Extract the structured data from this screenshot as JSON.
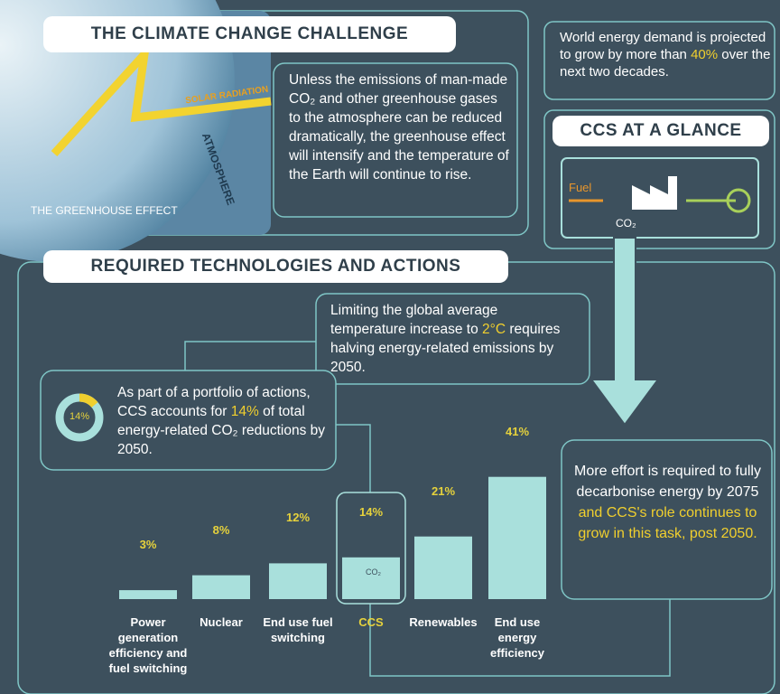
{
  "climate": {
    "title": "THE CLIMATE CHANGE CHALLENGE",
    "solar": "SOLAR RADIATION",
    "atmosphere": "ATMOSPHERE",
    "caption": "THE GREENHOUSE EFFECT",
    "text": "Unless the emissions of man-made CO₂ and other greenhouse gases to the atmosphere can be reduced dramatically, the greenhouse effect will intensify and the temperature of the Earth will continue to rise."
  },
  "demand": {
    "parts": [
      "World energy demand is projected to grow by more than ",
      "40%",
      " over the next two decades."
    ]
  },
  "glance": {
    "title": "CCS AT A GLANCE",
    "fuel": "Fuel",
    "co2": "CO₂"
  },
  "required": {
    "title": "REQUIRED TECHNOLOGIES AND ACTIONS",
    "limit_parts": [
      "Limiting the global average temperature increase to ",
      "2°C",
      " requires halving energy-related emissions by 2050."
    ],
    "portfolio_parts": [
      "As part of a portfolio of actions, CCS accounts for ",
      "14%",
      " of total energy-related CO₂ reductions by 2050."
    ],
    "ccs_share": {
      "value": 14,
      "label": "14%"
    },
    "effort_parts": [
      "More effort is required to fully decarbonise energy by 2075 ",
      "and CCS's role continues to grow in this task, post 2050."
    ],
    "ccs_co2": "CO₂"
  },
  "chart_data": {
    "type": "bar",
    "categories": [
      "Power generation efficiency and fuel switching",
      "Nuclear",
      "End use fuel switching",
      "CCS",
      "Renewables",
      "End use energy efficiency"
    ],
    "values": [
      3,
      8,
      12,
      14,
      21,
      41
    ],
    "value_labels": [
      "3%",
      "8%",
      "12%",
      "14%",
      "21%",
      "41%"
    ],
    "color": "#a9e0dc"
  }
}
